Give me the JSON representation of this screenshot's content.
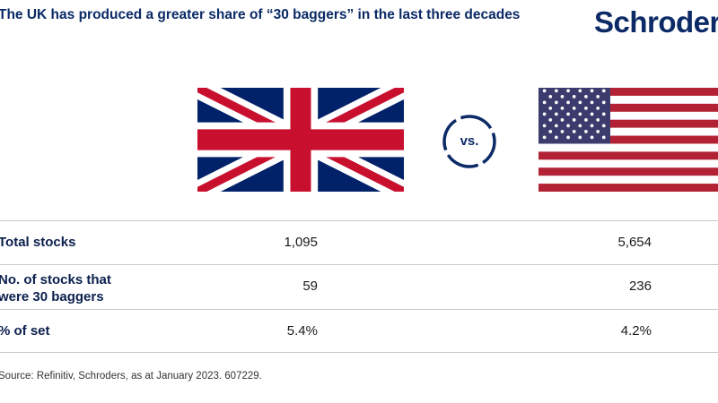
{
  "header": {
    "title": "The UK has produced a greater share of “30 baggers” in the last three decades",
    "logo_text": "Schroders"
  },
  "comparison": {
    "left_flag": "uk-flag",
    "right_flag": "us-flag",
    "vs_label": "vs."
  },
  "table": {
    "rows": [
      {
        "label": "Total stocks",
        "uk": "1,095",
        "us": "5,654"
      },
      {
        "label_line1": "No. of stocks that",
        "label_line2": "were 30 baggers",
        "uk": "59",
        "us": "236"
      },
      {
        "label": "% of set",
        "uk": "5.4%",
        "us": "4.2%"
      }
    ]
  },
  "footer": {
    "source": "Source: Refinitiv, Schroders, as at January 2023. 607229."
  },
  "colors": {
    "brand_navy": "#0b2a66",
    "union_blue": "#012169",
    "union_red": "#C8102E",
    "us_red": "#B22234",
    "us_blue": "#3C3B6E"
  }
}
